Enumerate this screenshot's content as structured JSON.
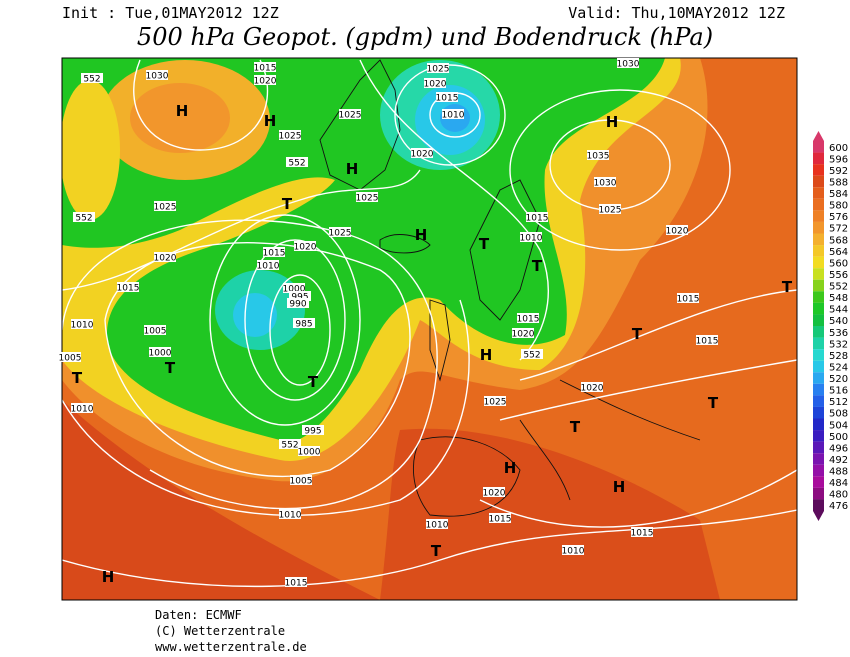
{
  "header": {
    "init": "Init : Tue,01MAY2012 12Z",
    "valid": "Valid: Thu,10MAY2012 12Z",
    "title": "500 hPa Geopot. (gpdm) und Bodendruck (hPa)"
  },
  "colorbar": {
    "values": [
      600,
      596,
      592,
      588,
      584,
      580,
      576,
      572,
      568,
      564,
      560,
      556,
      552,
      548,
      544,
      540,
      536,
      532,
      528,
      524,
      520,
      516,
      512,
      508,
      504,
      500,
      496,
      492,
      488,
      484,
      480,
      476
    ],
    "colors": [
      "#d8386a",
      "#e0283c",
      "#e8321e",
      "#dc4a1a",
      "#e45e1c",
      "#ea6e20",
      "#ee8026",
      "#f2962c",
      "#f4b02e",
      "#f4c828",
      "#f2dc22",
      "#c8e020",
      "#86d21c",
      "#3cc81c",
      "#1ec828",
      "#14c040",
      "#16c878",
      "#1ed2a8",
      "#26d8d0",
      "#28c8e8",
      "#2aa8f0",
      "#2880f0",
      "#2460e8",
      "#1e44d8",
      "#2228c8",
      "#3a1cc0",
      "#5a18b8",
      "#7a14b0",
      "#9410a8",
      "#a80c9c",
      "#8c0c80",
      "#5c0c5c"
    ]
  },
  "map_labels": [
    552,
    1030,
    "H",
    1015,
    1020,
    "H",
    1025,
    552,
    "T",
    1025,
    "H",
    1025,
    1020,
    1015,
    1010,
    1020,
    1025,
    1025,
    "H",
    "T",
    1015,
    1010,
    "T",
    1030,
    "H",
    1035,
    1030,
    1025,
    1020,
    552,
    1025,
    1020,
    1015,
    1010,
    1020,
    1015,
    1010,
    1000,
    995,
    990,
    985,
    1005,
    1000,
    "T",
    "T",
    1005,
    "T",
    1010,
    1015,
    1020,
    552,
    "H",
    "T",
    1015,
    1015,
    1020,
    1025,
    "T",
    "T",
    995,
    552,
    1000,
    "H",
    "H",
    1005,
    1020,
    1015,
    1010,
    1010,
    "T",
    1015,
    1010,
    "H",
    1015,
    "T"
  ],
  "footer": [
    "Daten: ECMWF",
    "(C) Wetterzentrale",
    "www.wetterzentrale.de"
  ]
}
